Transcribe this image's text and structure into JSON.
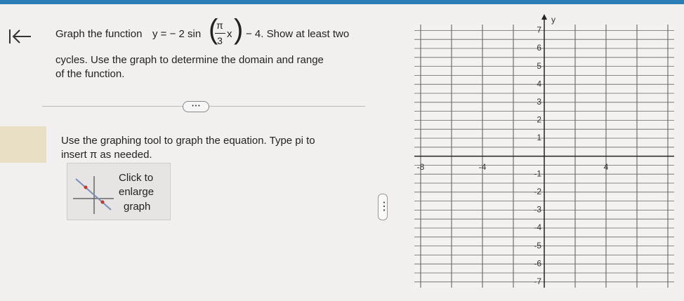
{
  "question": {
    "line1_before": "Graph the function",
    "eq_lhs": "y = − 2 sin",
    "paren_open": "(",
    "frac_num": "π",
    "frac_den": "3",
    "eq_var": "x",
    "paren_close": ")",
    "line1_after": "− 4. Show at least two",
    "line2": "cycles. Use the graph to determine the domain and range",
    "line3": "of the function."
  },
  "more_button": "• • •",
  "instruction": {
    "line1": "Use the graphing tool to graph the equation. Type pi to",
    "line2": "insert π as needed."
  },
  "enlarge_button": {
    "line1": "Click to",
    "line2": "enlarge",
    "line3": "graph"
  },
  "handle": "⋮",
  "graph": {
    "y_axis_label": "y",
    "y_tick_labels": [
      {
        "value": 7,
        "label": "7"
      },
      {
        "value": 6,
        "label": "6"
      },
      {
        "value": 5,
        "label": "5"
      },
      {
        "value": 4,
        "label": "4"
      },
      {
        "value": 3,
        "label": "3"
      },
      {
        "value": 2,
        "label": "2"
      },
      {
        "value": 1,
        "label": "1"
      },
      {
        "value": -1,
        "label": "-1"
      },
      {
        "value": -2,
        "label": "-2"
      },
      {
        "value": -3,
        "label": "-3"
      },
      {
        "value": -4,
        "label": "-4"
      },
      {
        "value": -5,
        "label": "-5"
      },
      {
        "value": -6,
        "label": "-6"
      },
      {
        "value": -7,
        "label": "-7"
      }
    ],
    "x_tick_labels": [
      {
        "value": -8,
        "label": "-8"
      },
      {
        "value": -4,
        "label": "-4"
      },
      {
        "value": 4,
        "label": "4"
      }
    ]
  }
}
